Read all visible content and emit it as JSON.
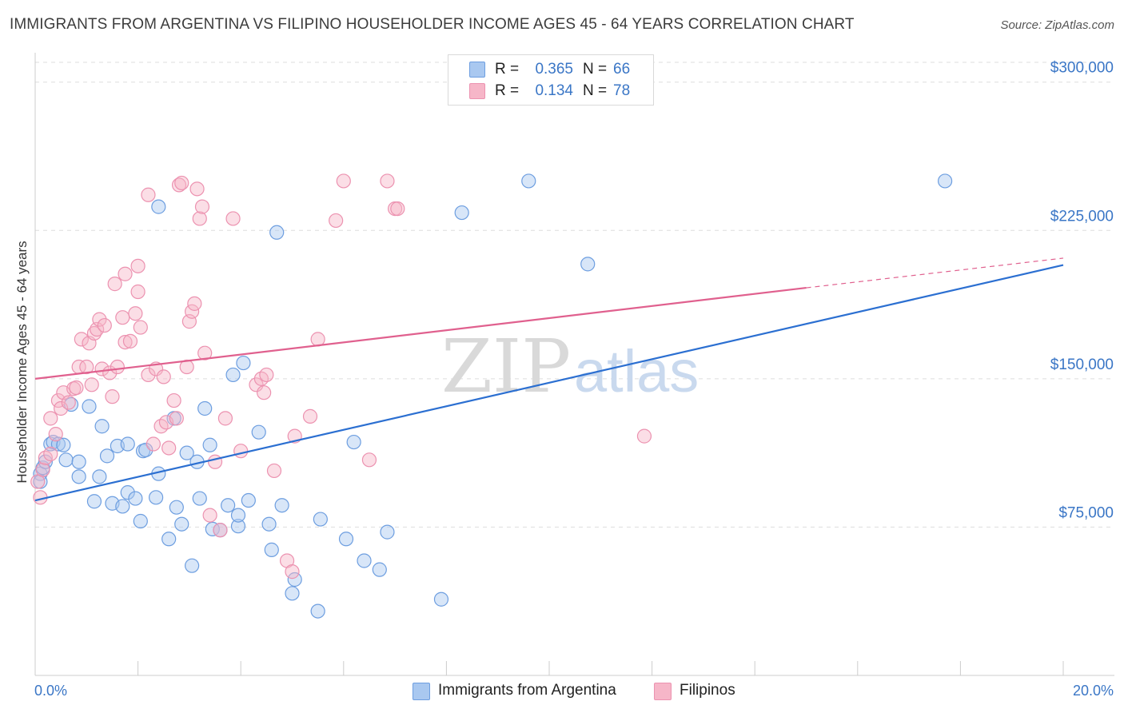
{
  "title": "IMMIGRANTS FROM ARGENTINA VS FILIPINO HOUSEHOLDER INCOME AGES 45 - 64 YEARS CORRELATION CHART",
  "source": "Source: ZipAtlas.com",
  "watermark": {
    "zip": "ZIP",
    "atlas": "atlas"
  },
  "legend": {
    "rows": [
      {
        "r_label": "R =",
        "r_value": "0.365",
        "n_label": "N =",
        "n_value": "66",
        "color": "#a9c8f0"
      },
      {
        "r_label": "R =",
        "r_value": "0.134",
        "n_label": "N =",
        "n_value": "78",
        "color": "#f6b6c8"
      }
    ]
  },
  "bottom_legend": [
    {
      "label": "Immigrants from Argentina",
      "color": "#a9c8f0"
    },
    {
      "label": "Filipinos",
      "color": "#f6b6c8"
    }
  ],
  "colors": {
    "blue_stroke": "#6d9ee0",
    "blue_fill": "#a9c8f0",
    "blue_line": "#2b6fd1",
    "pink_stroke": "#ec92b0",
    "pink_fill": "#f6b6c8",
    "pink_line": "#e0608e",
    "grid": "#dddddd",
    "axis_text": "#3a76c6"
  },
  "chart_data": {
    "type": "scatter",
    "title": "IMMIGRANTS FROM ARGENTINA VS FILIPINO HOUSEHOLDER INCOME AGES 45 - 64 YEARS CORRELATION CHART",
    "xlabel": "",
    "ylabel": "Householder Income Ages 45 - 64 years",
    "xlim": [
      0,
      20
    ],
    "ylim": [
      0,
      310000
    ],
    "x_tick_labels": [
      "0.0%",
      "20.0%"
    ],
    "y_ticks": [
      75000,
      150000,
      225000,
      300000
    ],
    "y_tick_labels": [
      "$75,000",
      "$150,000",
      "$225,000",
      "$300,000"
    ],
    "grid": true,
    "series": [
      {
        "name": "Immigrants from Argentina",
        "r": 0.365,
        "n": 66,
        "trend": {
          "x0": 0,
          "y0": 88500,
          "x1": 20,
          "y1": 207500
        },
        "points": [
          [
            0.1,
            102000
          ],
          [
            0.1,
            98000
          ],
          [
            0.15,
            105000
          ],
          [
            0.2,
            108000
          ],
          [
            0.3,
            117000
          ],
          [
            0.35,
            118000
          ],
          [
            0.45,
            117000
          ],
          [
            0.55,
            116500
          ],
          [
            0.6,
            109000
          ],
          [
            0.7,
            137000
          ],
          [
            0.85,
            100500
          ],
          [
            0.85,
            108000
          ],
          [
            1.05,
            136000
          ],
          [
            1.15,
            88000
          ],
          [
            1.25,
            100500
          ],
          [
            1.3,
            126000
          ],
          [
            1.4,
            111000
          ],
          [
            1.5,
            87000
          ],
          [
            1.6,
            116000
          ],
          [
            1.7,
            85500
          ],
          [
            1.8,
            117000
          ],
          [
            1.8,
            92500
          ],
          [
            1.95,
            89500
          ],
          [
            2.05,
            78000
          ],
          [
            2.1,
            113500
          ],
          [
            2.15,
            114000
          ],
          [
            2.35,
            90000
          ],
          [
            2.4,
            102000
          ],
          [
            2.4,
            237000
          ],
          [
            2.6,
            69000
          ],
          [
            2.7,
            130000
          ],
          [
            2.75,
            85000
          ],
          [
            2.85,
            76500
          ],
          [
            2.95,
            112500
          ],
          [
            3.05,
            55500
          ],
          [
            3.15,
            108000
          ],
          [
            3.2,
            89500
          ],
          [
            3.3,
            135000
          ],
          [
            3.4,
            116500
          ],
          [
            3.45,
            74000
          ],
          [
            3.6,
            73500
          ],
          [
            3.75,
            86000
          ],
          [
            3.85,
            152000
          ],
          [
            3.95,
            75500
          ],
          [
            3.95,
            81000
          ],
          [
            4.05,
            158000
          ],
          [
            4.15,
            88500
          ],
          [
            4.35,
            123000
          ],
          [
            4.55,
            76500
          ],
          [
            4.6,
            63500
          ],
          [
            4.7,
            224000
          ],
          [
            4.8,
            86000
          ],
          [
            5.0,
            41500
          ],
          [
            5.05,
            48500
          ],
          [
            5.5,
            32500
          ],
          [
            5.55,
            79000
          ],
          [
            6.05,
            69000
          ],
          [
            6.2,
            118000
          ],
          [
            6.4,
            58000
          ],
          [
            6.7,
            53500
          ],
          [
            6.85,
            72500
          ],
          [
            7.9,
            38500
          ],
          [
            8.3,
            234000
          ],
          [
            9.6,
            250000
          ],
          [
            10.75,
            208000
          ],
          [
            17.7,
            250000
          ]
        ]
      },
      {
        "name": "Filipinos",
        "r": 0.134,
        "n": 78,
        "trend": {
          "x0": 0,
          "y0": 150000,
          "x1": 15.0,
          "y1": 196000,
          "dash_x1": 20,
          "dash_y1": 211000
        },
        "points": [
          [
            0.05,
            98000
          ],
          [
            0.1,
            90000
          ],
          [
            0.15,
            104000
          ],
          [
            0.2,
            110000
          ],
          [
            0.3,
            112000
          ],
          [
            0.3,
            130000
          ],
          [
            0.4,
            122000
          ],
          [
            0.45,
            139000
          ],
          [
            0.5,
            135000
          ],
          [
            0.55,
            143000
          ],
          [
            0.65,
            138000
          ],
          [
            0.75,
            145000
          ],
          [
            0.8,
            145500
          ],
          [
            0.85,
            156000
          ],
          [
            0.9,
            170000
          ],
          [
            1.0,
            156000
          ],
          [
            1.05,
            168000
          ],
          [
            1.1,
            147000
          ],
          [
            1.15,
            173000
          ],
          [
            1.2,
            175000
          ],
          [
            1.25,
            180000
          ],
          [
            1.3,
            155000
          ],
          [
            1.35,
            177000
          ],
          [
            1.45,
            153000
          ],
          [
            1.5,
            141000
          ],
          [
            1.55,
            198000
          ],
          [
            1.6,
            156000
          ],
          [
            1.7,
            181000
          ],
          [
            1.75,
            168500
          ],
          [
            1.75,
            203000
          ],
          [
            1.85,
            169000
          ],
          [
            1.95,
            183000
          ],
          [
            2.0,
            194000
          ],
          [
            2.0,
            207000
          ],
          [
            2.05,
            176000
          ],
          [
            2.2,
            152000
          ],
          [
            2.2,
            243000
          ],
          [
            2.3,
            117000
          ],
          [
            2.35,
            155000
          ],
          [
            2.45,
            126000
          ],
          [
            2.5,
            151000
          ],
          [
            2.55,
            128000
          ],
          [
            2.6,
            115000
          ],
          [
            2.7,
            139000
          ],
          [
            2.75,
            130000
          ],
          [
            2.8,
            248000
          ],
          [
            2.85,
            249000
          ],
          [
            2.95,
            156000
          ],
          [
            3.0,
            179000
          ],
          [
            3.05,
            184000
          ],
          [
            3.1,
            188000
          ],
          [
            3.15,
            246000
          ],
          [
            3.2,
            231000
          ],
          [
            3.25,
            237000
          ],
          [
            3.3,
            163000
          ],
          [
            3.4,
            81000
          ],
          [
            3.5,
            108000
          ],
          [
            3.6,
            73500
          ],
          [
            3.7,
            130000
          ],
          [
            3.85,
            231000
          ],
          [
            4.0,
            113500
          ],
          [
            4.3,
            147000
          ],
          [
            4.4,
            150000
          ],
          [
            4.45,
            143000
          ],
          [
            4.5,
            152000
          ],
          [
            4.65,
            103500
          ],
          [
            4.9,
            58000
          ],
          [
            5.0,
            52500
          ],
          [
            5.05,
            121000
          ],
          [
            5.35,
            131000
          ],
          [
            5.5,
            170000
          ],
          [
            5.85,
            230000
          ],
          [
            6.0,
            250000
          ],
          [
            6.5,
            109000
          ],
          [
            6.85,
            250000
          ],
          [
            7.0,
            236000
          ],
          [
            7.05,
            236000
          ],
          [
            11.85,
            121000
          ]
        ]
      }
    ]
  }
}
